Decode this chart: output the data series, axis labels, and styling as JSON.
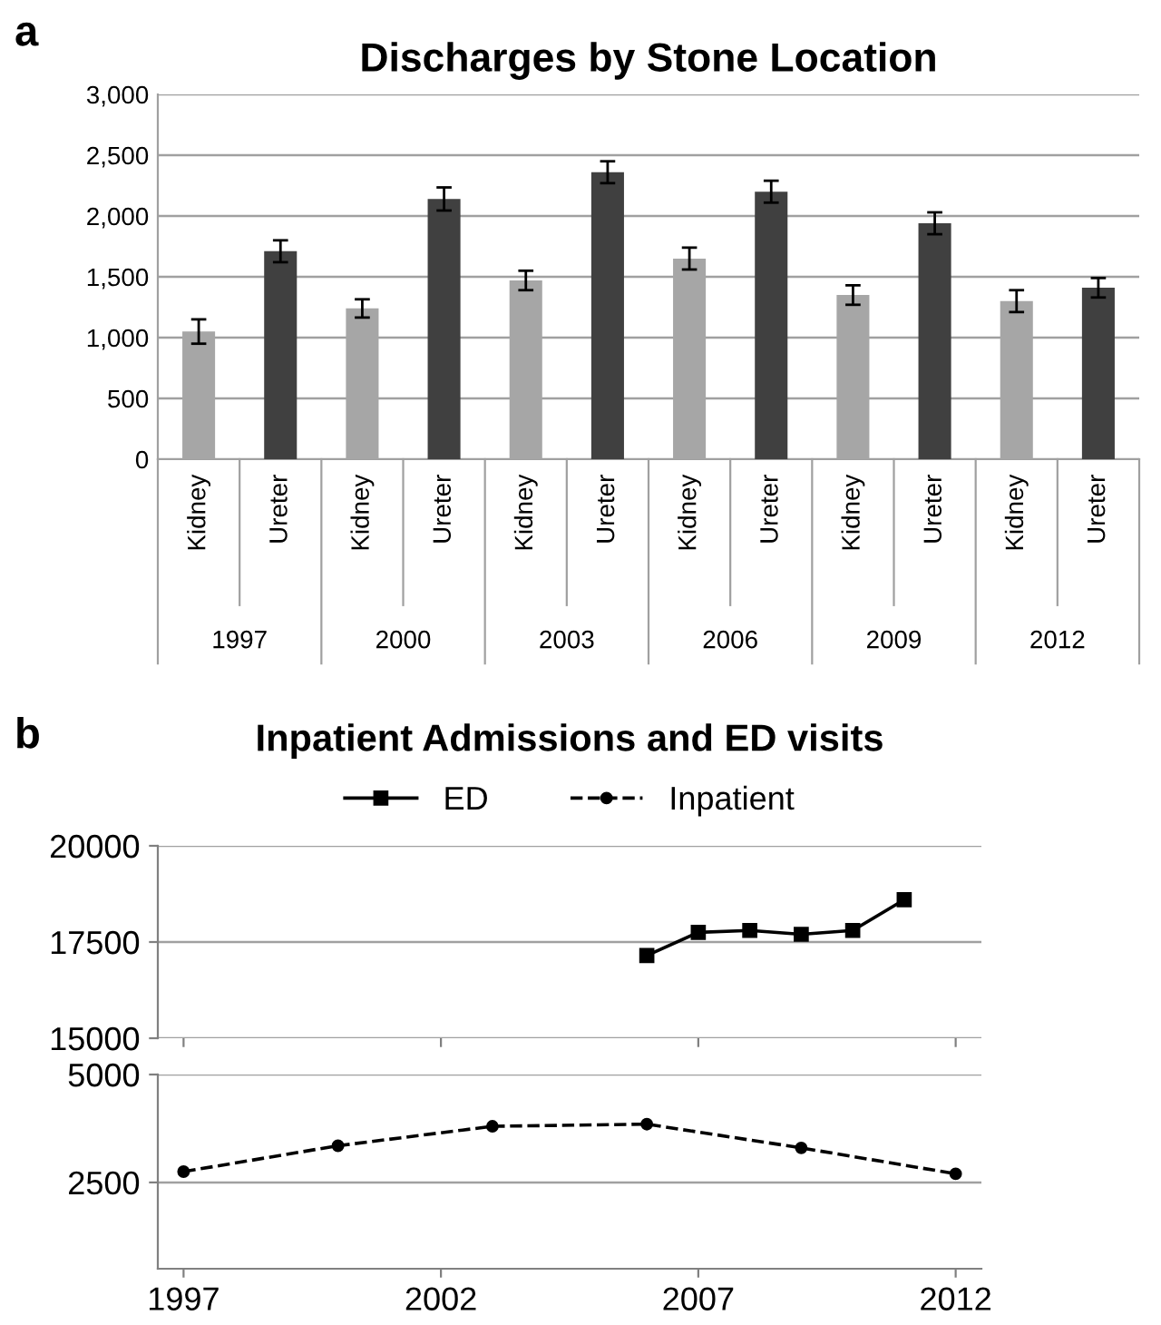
{
  "chart_data": [
    {
      "type": "bar",
      "title": "Discharges by Stone Location",
      "categories": [
        "Kidney",
        "Ureter",
        "Kidney",
        "Ureter",
        "Kidney",
        "Ureter",
        "Kidney",
        "Ureter",
        "Kidney",
        "Ureter",
        "Kidney",
        "Ureter"
      ],
      "values": [
        1050,
        1710,
        1240,
        2140,
        1470,
        2360,
        1650,
        2200,
        1350,
        1940,
        1300,
        1410
      ],
      "errors": [
        100,
        90,
        75,
        95,
        80,
        90,
        90,
        90,
        80,
        90,
        90,
        80
      ],
      "colors": [
        "#a6a6a6",
        "#404040",
        "#a6a6a6",
        "#404040",
        "#a6a6a6",
        "#404040",
        "#a6a6a6",
        "#404040",
        "#a6a6a6",
        "#404040",
        "#a6a6a6",
        "#404040"
      ],
      "ylim": [
        0,
        3000
      ],
      "yticks": [
        0,
        {
          "value": 500,
          "label": "500"
        },
        {
          "value": 1000,
          "label": "1,000"
        },
        {
          "value": 1500,
          "label": "1,500"
        },
        {
          "value": 2000,
          "label": "2,000"
        },
        {
          "value": 2500,
          "label": "2,500"
        },
        {
          "value": 3000,
          "label": "3,000"
        }
      ],
      "grid": "y",
      "legend": false,
      "annotations": [
        "a",
        "1997",
        "2000",
        "2003",
        "2006",
        "2009",
        "2012"
      ]
    },
    {
      "type": "line",
      "title": "Inpatient Admissions and ED visits",
      "x": [
        2006,
        2007,
        2008,
        2009,
        2010,
        2011
      ],
      "series": [
        {
          "name": "ED",
          "color": "#000000",
          "values": [
            17150,
            17750,
            17800,
            17700,
            17800,
            18600
          ]
        }
      ],
      "xlim": [
        1996.5,
        2012.5
      ],
      "xticks": [
        1997,
        2002,
        2007,
        2012
      ],
      "ylim": [
        15000,
        20000
      ],
      "yticks": [
        15000,
        17500,
        20000
      ],
      "tick_labels": "y",
      "grid": "y",
      "legend": "top",
      "marker": "square",
      "line_style": "solid",
      "annotations": [
        "b"
      ]
    },
    {
      "type": "line",
      "x": [
        1997,
        2000,
        2003,
        2006,
        2009,
        2012
      ],
      "series": [
        {
          "name": "Inpatient",
          "color": "#000000",
          "values": [
            2750,
            3350,
            3800,
            3850,
            3300,
            2700
          ]
        }
      ],
      "xlim": [
        1996.5,
        2012.5
      ],
      "xticks": [
        1997,
        2002,
        2007,
        2012
      ],
      "ylim": [
        500,
        5000
      ],
      "yticks": [
        2500,
        5000
      ],
      "grid": "y",
      "legend": "top",
      "marker": "circle",
      "line_style": "dashed"
    }
  ]
}
